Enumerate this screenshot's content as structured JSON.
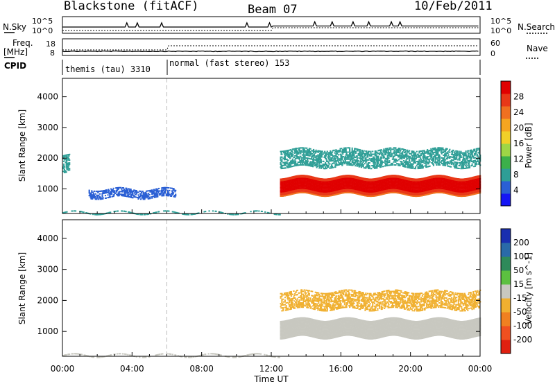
{
  "header": {
    "station": "Blackstone (fitACF)",
    "beam": "Beam 07",
    "date": "10/Feb/2011"
  },
  "noise_panel": {
    "left_label": "N.Sky",
    "left_ticks": [
      "10^5",
      "10^0"
    ],
    "right_label": "N.Search",
    "right_ticks": [
      "10^5",
      "10^0"
    ]
  },
  "freq_panel": {
    "left_label_1": "Freq.",
    "left_label_2": "[MHz]",
    "left_ticks": [
      "18",
      "8"
    ],
    "right_label": "Nave",
    "right_ticks": [
      "60",
      "0"
    ]
  },
  "cpid_panel": {
    "label": "CPID",
    "segments": [
      {
        "text": "themis (tau) 3310",
        "start_hour": 0,
        "end_hour": 6
      },
      {
        "text": "normal (fast stereo) 153",
        "start_hour": 6,
        "end_hour": 24
      }
    ]
  },
  "chart_data": [
    {
      "type": "heatmap",
      "name": "power",
      "ylabel": "Slant Range [km]",
      "xlabel": "Time UT",
      "x_unit": "hour",
      "xlim": [
        0,
        24
      ],
      "ylim": [
        200,
        4600
      ],
      "yticks": [
        1000,
        2000,
        3000,
        4000
      ],
      "xticks": [
        "00:00",
        "04:00",
        "08:00",
        "12:00",
        "16:00",
        "20:00",
        "00:00"
      ],
      "colorbar": {
        "label": "Power [dB]",
        "ticks": [
          4,
          8,
          12,
          16,
          20,
          24,
          28
        ],
        "range": [
          0,
          30
        ],
        "colors": [
          "#1515f5",
          "#2a5fd4",
          "#2e9e96",
          "#3cb04a",
          "#9ed646",
          "#f0d028",
          "#f5a520",
          "#f07020",
          "#e83818",
          "#e00000"
        ]
      },
      "features": [
        {
          "band": "near-range echoes",
          "hours": [
            0,
            12.5
          ],
          "range_km": [
            200,
            260
          ],
          "dB": 6
        },
        {
          "band": "early ionospheric echoes",
          "hours": [
            0,
            0.4
          ],
          "range_km": [
            1500,
            2100
          ],
          "dB": 8
        },
        {
          "band": "sporadic echoes",
          "hours": [
            1.5,
            6.5
          ],
          "range_km": [
            700,
            1000
          ],
          "dB": 4
        },
        {
          "band": "main scatter band",
          "hours": [
            12.5,
            24
          ],
          "range_km": [
            800,
            1400
          ],
          "dB": 24
        },
        {
          "band": "upper diffuse band",
          "hours": [
            12.5,
            24
          ],
          "range_km": [
            1700,
            2300
          ],
          "dB": 8
        }
      ]
    },
    {
      "type": "heatmap",
      "name": "velocity",
      "ylabel": "Slant Range [km]",
      "xlabel": "Time UT",
      "x_unit": "hour",
      "xlim": [
        0,
        24
      ],
      "ylim": [
        200,
        4600
      ],
      "yticks": [
        1000,
        2000,
        3000,
        4000
      ],
      "xticks": [
        "00:00",
        "04:00",
        "08:00",
        "12:00",
        "16:00",
        "20:00",
        "00:00"
      ],
      "colorbar": {
        "label": "Velocity [m s^-1]",
        "ticks": [
          "200",
          "100",
          "50",
          "15",
          "-15",
          "-50",
          "-100",
          "-200"
        ],
        "range": [
          -250,
          250
        ],
        "colors": [
          "#1a2fb0",
          "#2a6aa8",
          "#2e8a5a",
          "#5cc040",
          "#c8c8c0",
          "#f0b030",
          "#f08020",
          "#f05020",
          "#e02010"
        ]
      },
      "features": [
        {
          "band": "near-range echoes",
          "hours": [
            0,
            12.5
          ],
          "range_km": [
            200,
            260
          ],
          "velocity": -30
        },
        {
          "band": "main scatter band",
          "hours": [
            12.5,
            24
          ],
          "range_km": [
            800,
            1400
          ],
          "velocity": 0
        },
        {
          "band": "upper diffuse band",
          "hours": [
            12.5,
            24
          ],
          "range_km": [
            1700,
            2300
          ],
          "velocity": -40
        }
      ]
    }
  ]
}
